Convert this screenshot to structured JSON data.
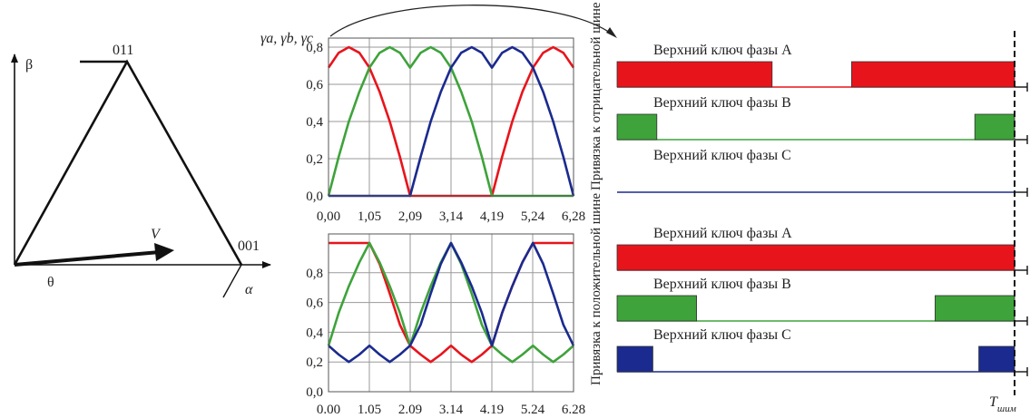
{
  "colors": {
    "phase_a": "#e8141c",
    "phase_b": "#3ea33a",
    "phase_c": "#1a2a8f",
    "axis": "#111111",
    "grid": "#9a9a9a"
  },
  "vector_diagram": {
    "beta_label": "β",
    "alpha_label": "α",
    "theta_label": "θ",
    "vector_label": "V",
    "vertex_top_label": "011",
    "vertex_right_label": "001"
  },
  "chart_data": [
    {
      "type": "line",
      "ylabel": "γa, γb, γc",
      "xlim": [
        0,
        6.28
      ],
      "ylim": [
        0,
        0.8
      ],
      "x_ticks": [
        "0,00",
        "1,05",
        "2,09",
        "3,14",
        "4,19",
        "5,24",
        "6,28"
      ],
      "y_ticks": [
        "0,0",
        "0,2",
        "0,4",
        "0,6",
        "0,8"
      ],
      "series": [
        {
          "id": "a",
          "color": "#e8141c",
          "x": [
            0,
            0.26,
            0.52,
            0.79,
            1.05,
            1.31,
            1.57,
            1.83,
            2.09,
            2.36,
            2.62,
            2.88,
            3.14,
            3.4,
            3.67,
            3.93,
            4.19,
            4.45,
            4.71,
            4.97,
            5.24,
            5.5,
            5.76,
            6.02,
            6.28
          ],
          "y": [
            0.69,
            0.77,
            0.8,
            0.77,
            0.69,
            0.56,
            0.4,
            0.21,
            0.0,
            0.0,
            0.0,
            0.0,
            0.0,
            0.0,
            0.0,
            0.0,
            0.0,
            0.21,
            0.4,
            0.56,
            0.69,
            0.77,
            0.8,
            0.77,
            0.69
          ]
        },
        {
          "id": "b",
          "color": "#3ea33a",
          "x": [
            0,
            0.26,
            0.52,
            0.79,
            1.05,
            1.31,
            1.57,
            1.83,
            2.09,
            2.36,
            2.62,
            2.88,
            3.14,
            3.4,
            3.67,
            3.93,
            4.19,
            4.45,
            4.71,
            4.97,
            5.24,
            5.5,
            5.76,
            6.02,
            6.28
          ],
          "y": [
            0.0,
            0.21,
            0.4,
            0.56,
            0.69,
            0.77,
            0.8,
            0.77,
            0.69,
            0.77,
            0.8,
            0.77,
            0.69,
            0.56,
            0.4,
            0.21,
            0.0,
            0.0,
            0.0,
            0.0,
            0.0,
            0.0,
            0.0,
            0.0,
            0.0
          ]
        },
        {
          "id": "c",
          "color": "#1a2a8f",
          "x": [
            0,
            0.26,
            0.52,
            0.79,
            1.05,
            1.31,
            1.57,
            1.83,
            2.09,
            2.36,
            2.62,
            2.88,
            3.14,
            3.4,
            3.67,
            3.93,
            4.19,
            4.45,
            4.71,
            4.97,
            5.24,
            5.5,
            5.76,
            6.02,
            6.28
          ],
          "y": [
            0.0,
            0.0,
            0.0,
            0.0,
            0.0,
            0.0,
            0.0,
            0.0,
            0.0,
            0.21,
            0.4,
            0.56,
            0.69,
            0.77,
            0.8,
            0.77,
            0.69,
            0.77,
            0.8,
            0.77,
            0.69,
            0.56,
            0.4,
            0.21,
            0.0
          ]
        }
      ]
    },
    {
      "type": "line",
      "ylabel": "",
      "xlim": [
        0,
        6.28
      ],
      "ylim": [
        0,
        1.0
      ],
      "x_ticks": [
        "0.00",
        "1.05",
        "2.09",
        "3.14",
        "4.19",
        "5.24",
        "6.28"
      ],
      "y_ticks": [
        "0,0",
        "0,2",
        "0,4",
        "0,6",
        "0,8"
      ],
      "series": [
        {
          "id": "a",
          "color": "#e8141c",
          "x": [
            0,
            0.26,
            0.52,
            0.79,
            1.05,
            1.31,
            1.57,
            1.83,
            2.09,
            2.36,
            2.62,
            2.88,
            3.14,
            3.4,
            3.67,
            3.93,
            4.19,
            4.45,
            4.71,
            4.97,
            5.24,
            5.5,
            5.76,
            6.02,
            6.28
          ],
          "y": [
            1.0,
            1.0,
            1.0,
            1.0,
            1.0,
            0.86,
            0.66,
            0.45,
            0.31,
            0.25,
            0.2,
            0.25,
            0.31,
            0.25,
            0.2,
            0.25,
            0.31,
            0.53,
            0.71,
            0.87,
            1.0,
            1.0,
            1.0,
            1.0,
            1.0
          ]
        },
        {
          "id": "b",
          "color": "#3ea33a",
          "x": [
            0,
            0.26,
            0.52,
            0.79,
            1.05,
            1.31,
            1.57,
            1.83,
            2.09,
            2.36,
            2.62,
            2.88,
            3.14,
            3.4,
            3.67,
            3.93,
            4.19,
            4.45,
            4.71,
            4.97,
            5.24,
            5.5,
            5.76,
            6.02,
            6.28
          ],
          "y": [
            0.31,
            0.53,
            0.71,
            0.87,
            1.0,
            0.87,
            0.71,
            0.53,
            0.31,
            0.53,
            0.71,
            0.87,
            1.0,
            0.86,
            0.66,
            0.45,
            0.31,
            0.25,
            0.2,
            0.25,
            0.31,
            0.25,
            0.2,
            0.25,
            0.31
          ]
        },
        {
          "id": "c",
          "color": "#1a2a8f",
          "x": [
            0,
            0.26,
            0.52,
            0.79,
            1.05,
            1.31,
            1.57,
            1.83,
            2.09,
            2.36,
            2.62,
            2.88,
            3.14,
            3.4,
            3.67,
            3.93,
            4.19,
            4.45,
            4.71,
            4.97,
            5.24,
            5.5,
            5.76,
            6.02,
            6.28
          ],
          "y": [
            0.31,
            0.25,
            0.2,
            0.25,
            0.31,
            0.25,
            0.2,
            0.25,
            0.31,
            0.45,
            0.66,
            0.86,
            1.0,
            0.87,
            0.71,
            0.53,
            0.31,
            0.53,
            0.71,
            0.87,
            1.0,
            0.86,
            0.66,
            0.45,
            0.31
          ]
        }
      ]
    }
  ],
  "switching": {
    "group_top_label": "Привязка к отрицательной шине",
    "group_bottom_label": "Привязка к положительной шине",
    "period_label": "Tшим",
    "period_label_main": "T",
    "period_label_sub": "шим",
    "rows": [
      {
        "label": "Верхний ключ фазы A",
        "color": "#e8141c",
        "on": [
          [
            0.0,
            0.39
          ],
          [
            0.59,
            1.0
          ]
        ]
      },
      {
        "label": "Верхний ключ фазы B",
        "color": "#3ea33a",
        "on": [
          [
            0.0,
            0.1
          ],
          [
            0.9,
            1.0
          ]
        ]
      },
      {
        "label": "Верхний ключ фазы C",
        "color": "#1a2a8f",
        "on": []
      },
      {
        "label": "Верхний ключ фазы A",
        "color": "#e8141c",
        "on": [
          [
            0.0,
            1.0
          ]
        ]
      },
      {
        "label": "Верхний ключ фазы B",
        "color": "#3ea33a",
        "on": [
          [
            0.0,
            0.2
          ],
          [
            0.8,
            1.0
          ]
        ]
      },
      {
        "label": "Верхний ключ фазы C",
        "color": "#1a2a8f",
        "on": [
          [
            0.0,
            0.09
          ],
          [
            0.91,
            1.0
          ]
        ]
      }
    ]
  }
}
